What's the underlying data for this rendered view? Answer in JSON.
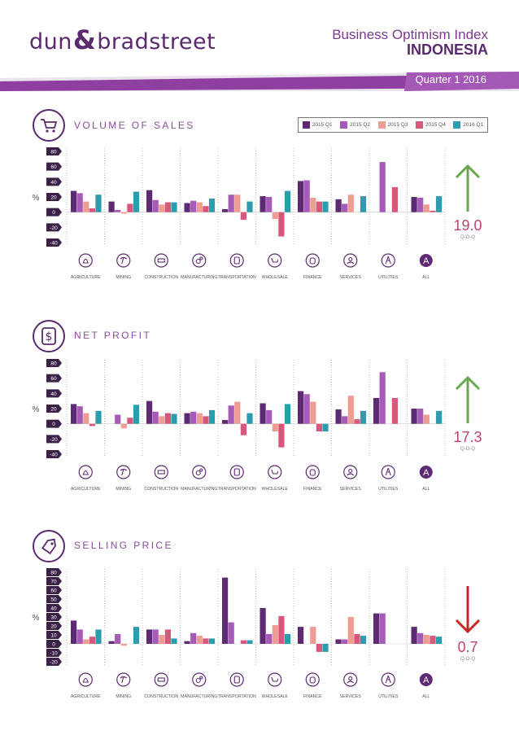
{
  "header": {
    "logo_left": "dun",
    "logo_amp": "&",
    "logo_right": "bradstreet",
    "title": "Business Optimism Index",
    "country": "INDONESIA",
    "quarter": "Quarter 1 2016"
  },
  "colors": {
    "purple_dark": "#5e2a73",
    "purple_mid": "#a65bb8",
    "salmon": "#ef9d93",
    "pink": "#d9577a",
    "teal": "#2e9caf",
    "green": "#6aa84f",
    "red": "#c62828",
    "band": "#8e3fa0"
  },
  "legend": [
    "2015 Q1",
    "2015 Q2",
    "2015 Q3",
    "2015 Q4",
    "2016 Q1"
  ],
  "y_unit": "%",
  "categories": [
    "AGRICULTURE",
    "MINING",
    "CONSTRUCTION",
    "MANUFACTURING",
    "TRANSPORTATION",
    "WHOLESALE",
    "FINANCE",
    "SERVICES",
    "UTILITIES",
    "ALL"
  ],
  "category_icons": [
    "leaf-icon",
    "pickaxe-icon",
    "truck-icon",
    "gears-icon",
    "bus-icon",
    "cart-icon",
    "money-bag-icon",
    "person-icon",
    "tower-icon",
    "all-badge-icon"
  ],
  "sections": [
    {
      "title": "VOLUME OF SALES",
      "icon": "shopping-cart-icon",
      "trend_value": "19.0",
      "trend_label": "Q-O-Q",
      "trend_direction": "up"
    },
    {
      "title": "NET PROFIT",
      "icon": "dollar-icon",
      "trend_value": "17.3",
      "trend_label": "Q-O-Q",
      "trend_direction": "up"
    },
    {
      "title": "SELLING PRICE",
      "icon": "price-tag-icon",
      "trend_value": "0.7",
      "trend_label": "Q-O-Q",
      "trend_direction": "down"
    }
  ],
  "chart_data": [
    {
      "type": "bar",
      "title": "VOLUME OF SALES",
      "ylabel": "%",
      "categories": [
        "AGRICULTURE",
        "MINING",
        "CONSTRUCTION",
        "MANUFACTURING",
        "TRANSPORTATION",
        "WHOLESALE",
        "FINANCE",
        "SERVICES",
        "UTILITIES",
        "ALL"
      ],
      "yticks": [
        80,
        60,
        40,
        20,
        0,
        -20,
        -40
      ],
      "ylim": [
        -40,
        80
      ],
      "series": [
        {
          "name": "2015 Q1",
          "values": [
            28,
            14,
            29,
            12,
            4,
            21,
            41,
            17,
            0,
            20
          ]
        },
        {
          "name": "2015 Q2",
          "values": [
            25,
            3,
            16,
            15,
            23,
            20,
            42,
            11,
            66,
            19
          ]
        },
        {
          "name": "2015 Q3",
          "values": [
            14,
            -2,
            10,
            13,
            23,
            -9,
            19,
            23,
            0,
            10
          ]
        },
        {
          "name": "2015 Q4",
          "values": [
            5,
            11,
            13,
            8,
            -10,
            -32,
            14,
            0,
            33,
            2
          ]
        },
        {
          "name": "2016 Q1",
          "values": [
            23,
            27,
            13,
            18,
            14,
            28,
            14,
            21,
            0,
            21
          ]
        }
      ]
    },
    {
      "type": "bar",
      "title": "NET PROFIT",
      "ylabel": "%",
      "categories": [
        "AGRICULTURE",
        "MINING",
        "CONSTRUCTION",
        "MANUFACTURING",
        "TRANSPORTATION",
        "WHOLESALE",
        "FINANCE",
        "SERVICES",
        "UTILITIES",
        "ALL"
      ],
      "yticks": [
        80,
        60,
        40,
        20,
        0,
        -20,
        -40
      ],
      "ylim": [
        -40,
        80
      ],
      "series": [
        {
          "name": "2015 Q1",
          "values": [
            26,
            0,
            30,
            14,
            5,
            27,
            43,
            19,
            34,
            20
          ]
        },
        {
          "name": "2015 Q2",
          "values": [
            23,
            12,
            16,
            16,
            24,
            18,
            39,
            10,
            68,
            20
          ]
        },
        {
          "name": "2015 Q3",
          "values": [
            14,
            -6,
            10,
            14,
            29,
            -10,
            29,
            37,
            0,
            12
          ]
        },
        {
          "name": "2015 Q4",
          "values": [
            -3,
            8,
            14,
            10,
            -15,
            -31,
            -10,
            6,
            34,
            0
          ]
        },
        {
          "name": "2016 Q1",
          "values": [
            17,
            25,
            13,
            18,
            14,
            26,
            -10,
            17,
            0,
            17
          ]
        }
      ]
    },
    {
      "type": "bar",
      "title": "SELLING PRICE",
      "ylabel": "%",
      "categories": [
        "AGRICULTURE",
        "MINING",
        "CONSTRUCTION",
        "MANUFACTURING",
        "TRANSPORTATION",
        "WHOLESALE",
        "FINANCE",
        "SERVICES",
        "UTILITIES",
        "ALL"
      ],
      "yticks": [
        80,
        70,
        60,
        50,
        40,
        30,
        20,
        10,
        0,
        -10,
        -20
      ],
      "ylim": [
        -20,
        80
      ],
      "series": [
        {
          "name": "2015 Q1",
          "values": [
            26,
            3,
            16,
            3,
            74,
            40,
            19,
            5,
            34,
            19
          ]
        },
        {
          "name": "2015 Q2",
          "values": [
            16,
            11,
            16,
            12,
            24,
            11,
            0,
            5,
            34,
            12
          ]
        },
        {
          "name": "2015 Q3",
          "values": [
            5,
            -2,
            10,
            9,
            0,
            21,
            19,
            30,
            0,
            10
          ]
        },
        {
          "name": "2015 Q4",
          "values": [
            8,
            0,
            16,
            6,
            4,
            31,
            -9,
            11,
            0,
            9
          ]
        },
        {
          "name": "2016 Q1",
          "values": [
            16,
            19,
            6,
            6,
            4,
            11,
            -9,
            9,
            0,
            8
          ]
        }
      ]
    }
  ]
}
